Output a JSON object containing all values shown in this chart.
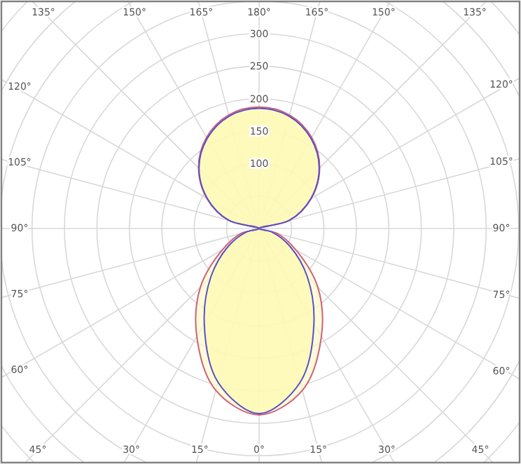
{
  "chart_data": {
    "type": "radar",
    "categories": [
      "180°",
      "165°",
      "150°",
      "135°",
      "120°",
      "105°",
      "90°",
      "75°",
      "60°",
      "45°",
      "30°",
      "15°",
      "0°",
      "15°",
      "30°",
      "45°",
      "60°",
      "75°",
      "90°",
      "105°",
      "120°",
      "135°",
      "150°",
      "165°"
    ],
    "series": [
      {
        "color": "#d0607a",
        "values": [
          187,
          181,
          162,
          132,
          93,
          49,
          0,
          28,
          65,
          128,
          192,
          258,
          287,
          258,
          192,
          128,
          65,
          28,
          0,
          49,
          93,
          132,
          162,
          181
        ]
      },
      {
        "color": "#5a50c8",
        "values": [
          185,
          179,
          160,
          131,
          92,
          48,
          0,
          20,
          55,
          105,
          169,
          245,
          285,
          245,
          169,
          105,
          55,
          20,
          0,
          48,
          92,
          131,
          160,
          179
        ]
      }
    ],
    "ylim": [
      0,
      550
    ],
    "yticks": [
      100,
      150,
      200,
      250,
      300
    ],
    "grid": true
  }
}
